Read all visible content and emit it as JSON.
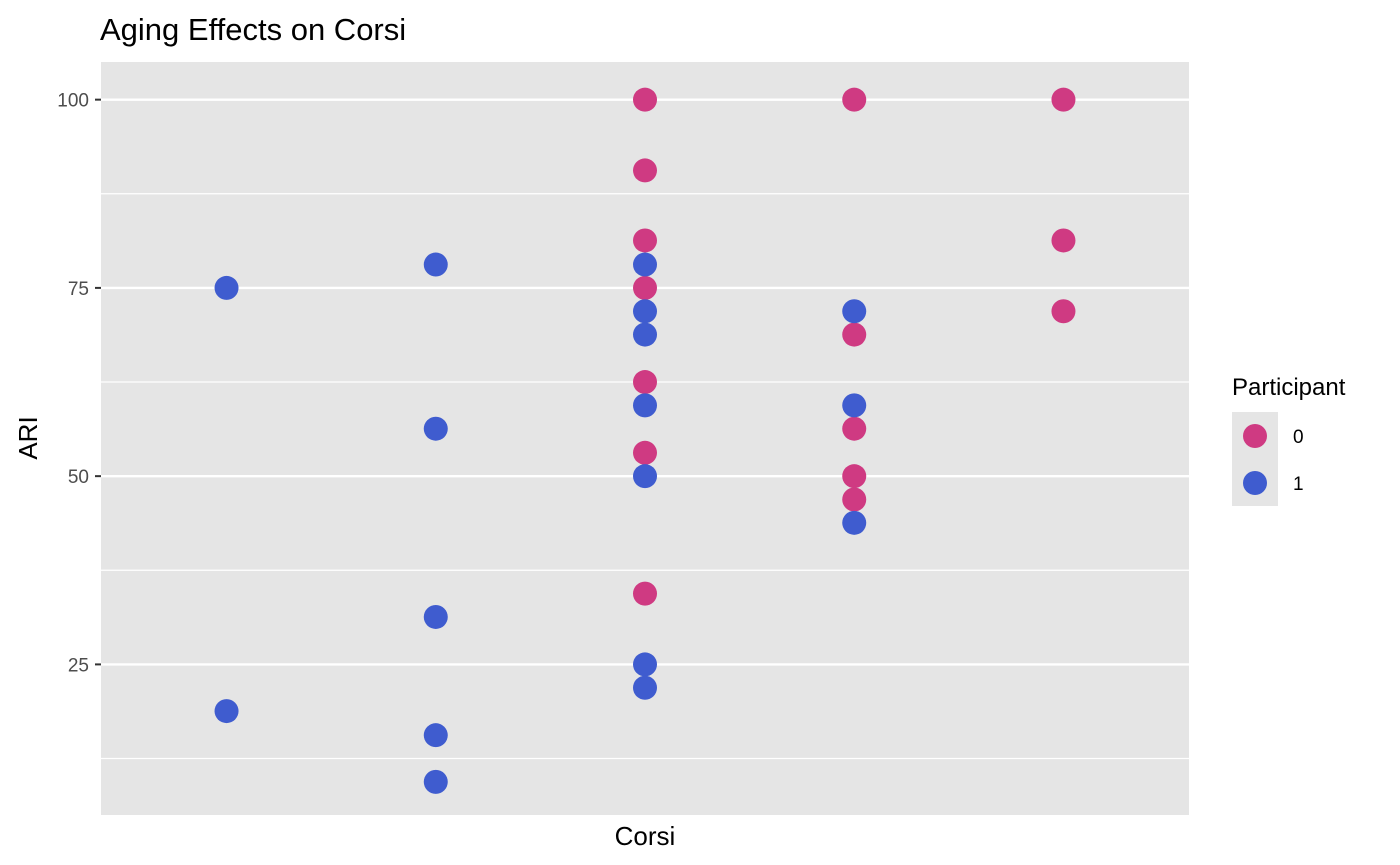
{
  "chart_data": {
    "type": "scatter",
    "title": "Aging Effects on Corsi",
    "xlabel": "Corsi",
    "ylabel": "ARI",
    "ylim": [
      5,
      105
    ],
    "yticks": [
      25,
      50,
      75,
      100
    ],
    "x_tick_labels_shown": false,
    "grid": true,
    "legend": {
      "title": "Participant",
      "position": "right"
    },
    "series": [
      {
        "name": "0",
        "color": "#cf3a82",
        "points": [
          {
            "x": 3,
            "y": 100
          },
          {
            "x": 3,
            "y": 90.6
          },
          {
            "x": 3,
            "y": 81.3
          },
          {
            "x": 3,
            "y": 75
          },
          {
            "x": 3,
            "y": 62.5
          },
          {
            "x": 3,
            "y": 53.1
          },
          {
            "x": 3,
            "y": 34.4
          },
          {
            "x": 4,
            "y": 100
          },
          {
            "x": 4,
            "y": 68.8
          },
          {
            "x": 4,
            "y": 56.3
          },
          {
            "x": 4,
            "y": 50
          },
          {
            "x": 4,
            "y": 46.9
          },
          {
            "x": 5,
            "y": 100
          },
          {
            "x": 5,
            "y": 81.3
          },
          {
            "x": 5,
            "y": 71.9
          }
        ]
      },
      {
        "name": "1",
        "color": "#3f5ccf",
        "points": [
          {
            "x": 1,
            "y": 75
          },
          {
            "x": 1,
            "y": 18.8
          },
          {
            "x": 2,
            "y": 78.1
          },
          {
            "x": 2,
            "y": 56.3
          },
          {
            "x": 2,
            "y": 31.3
          },
          {
            "x": 2,
            "y": 15.6
          },
          {
            "x": 2,
            "y": 9.4
          },
          {
            "x": 3,
            "y": 78.1
          },
          {
            "x": 3,
            "y": 71.9
          },
          {
            "x": 3,
            "y": 68.8
          },
          {
            "x": 3,
            "y": 59.4
          },
          {
            "x": 3,
            "y": 50
          },
          {
            "x": 3,
            "y": 25
          },
          {
            "x": 3,
            "y": 21.9
          },
          {
            "x": 4,
            "y": 71.9
          },
          {
            "x": 4,
            "y": 59.4
          },
          {
            "x": 4,
            "y": 43.8
          }
        ]
      }
    ],
    "xlim": [
      0.4,
      5.6
    ],
    "panel_color": "#e5e5e5",
    "grid_color": "#ffffff"
  }
}
